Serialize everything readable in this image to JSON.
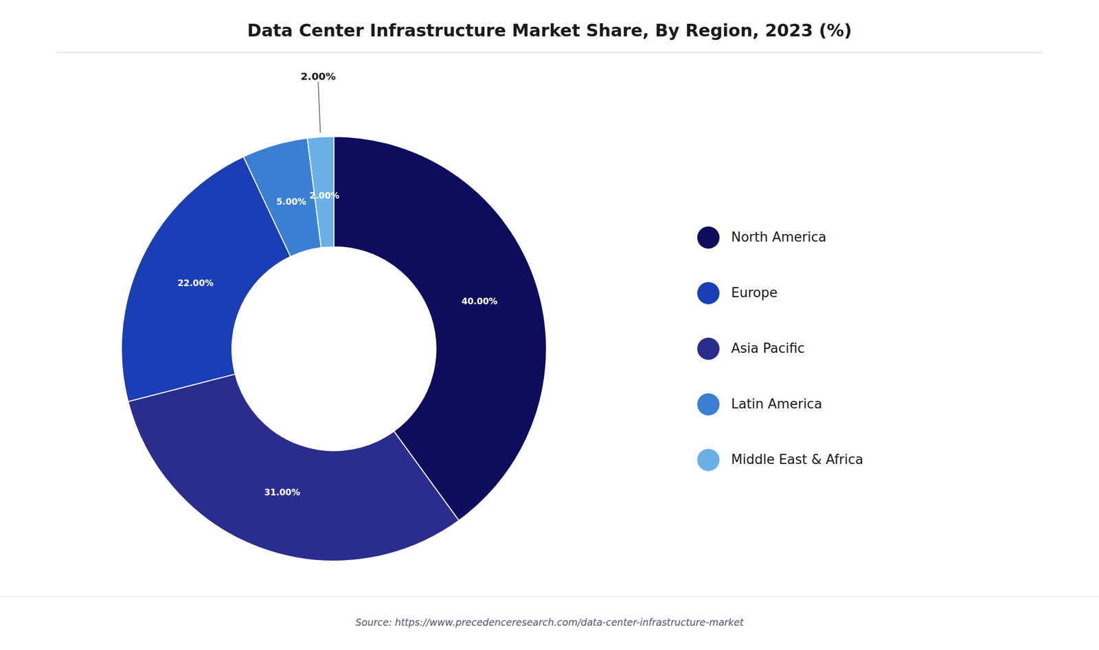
{
  "chart_data": {
    "type": "pie",
    "title": "Data Center Infrastructure Market Share, By Region, 2023 (%)",
    "categories": [
      "North America",
      "Asia Pacific",
      "Europe",
      "Latin America",
      "Middle East & Africa"
    ],
    "values": [
      40.0,
      31.0,
      22.0,
      5.0,
      2.0
    ],
    "value_labels": [
      "40.00%",
      "31.00%",
      "22.00%",
      "5.00%",
      "2.00%"
    ],
    "colors": [
      "#0d0d5e",
      "#2b2d8e",
      "#1a3eb5",
      "#3a7fd4",
      "#6ab0e8"
    ],
    "data_labels": true,
    "annotations": [
      {
        "text": "2.00%",
        "category": "Middle East & Africa"
      }
    ],
    "legend": "right",
    "legend_labels": [
      "North America",
      "Europe",
      "Asia Pacific",
      "Latin America",
      "Middle East & Africa"
    ],
    "source": "Source: https://www.precedenceresearch.com/data-center-infrastructure-market"
  }
}
